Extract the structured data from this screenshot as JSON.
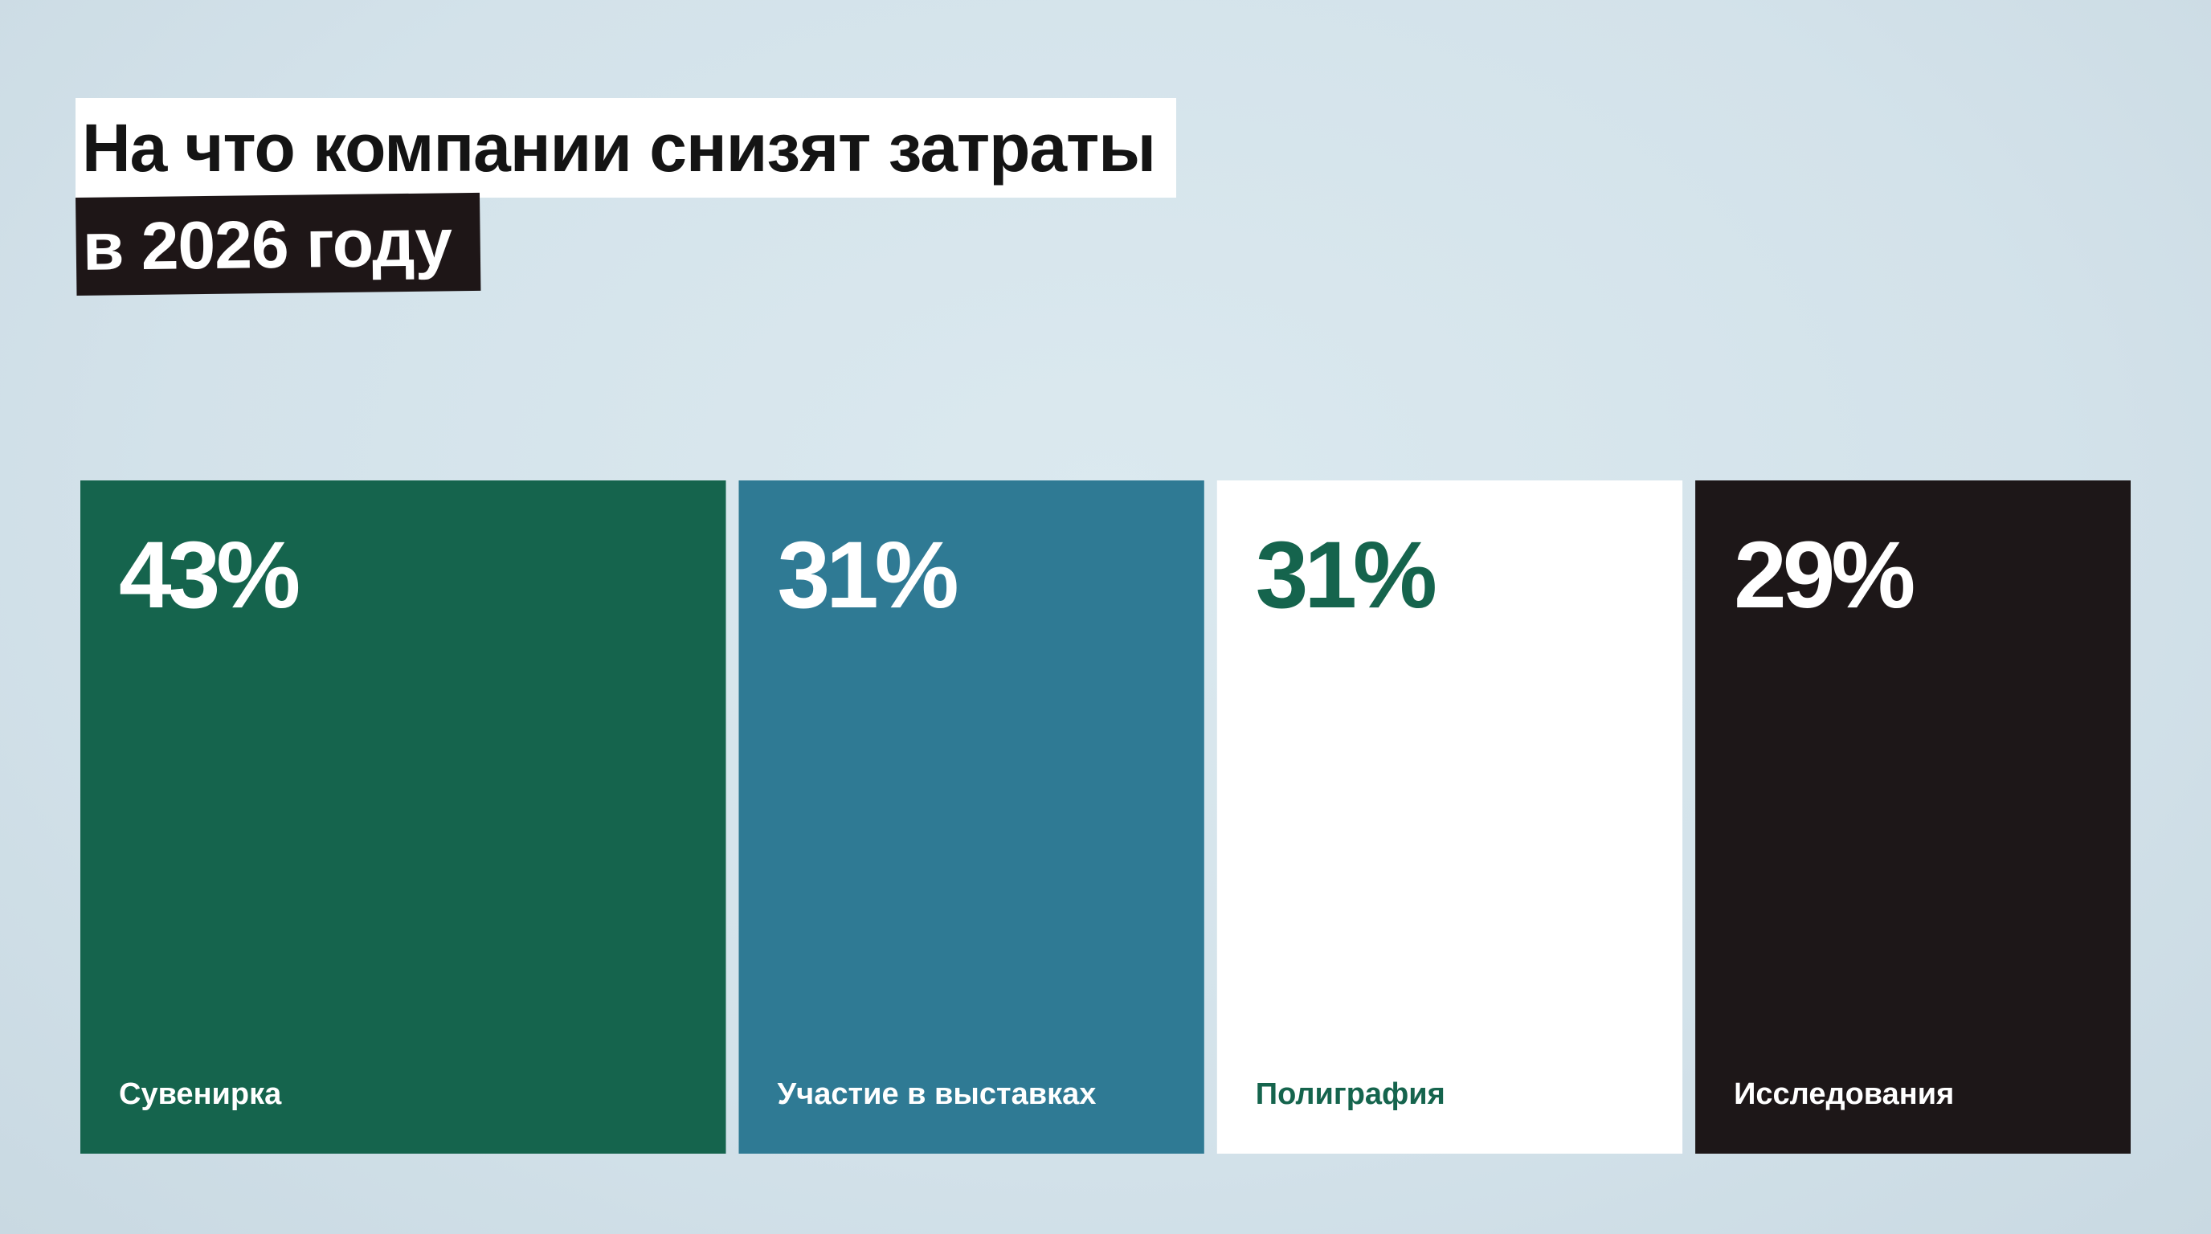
{
  "title": {
    "line1": "На что компании снизят затраты",
    "line2": "в 2026 году"
  },
  "colors": {
    "background": "#d6e5ec",
    "title_box_light": "#ffffff",
    "title_box_dark": "#1e1617"
  },
  "chart_data": {
    "type": "bar",
    "categories": [
      "Сувенирка",
      "Участие в выставках",
      "Полиграфия",
      "Исследования"
    ],
    "values": [
      43,
      31,
      31,
      29
    ],
    "value_labels": [
      "43%",
      "31%",
      "31%",
      "29%"
    ],
    "unit": "%",
    "bar_colors": [
      "#15644d",
      "#2f7a94",
      "#ffffff",
      "#1d1718"
    ],
    "text_colors": [
      "#ffffff",
      "#ffffff",
      "#15644d",
      "#ffffff"
    ],
    "encoding": "bar width proportional to value",
    "title": "На что компании снизят затраты в 2026 году",
    "xlabel": "",
    "ylabel": "",
    "grid": false,
    "legend": "none"
  }
}
